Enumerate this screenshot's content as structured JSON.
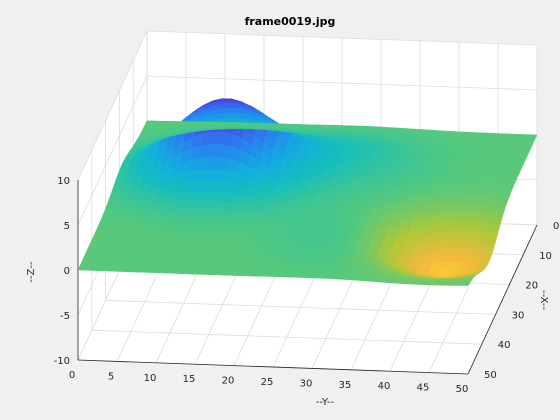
{
  "chart_data": {
    "type": "surface",
    "title": "frame0019.jpg",
    "xlabel": "--Y--",
    "ylabel": "--X--",
    "zlabel": "--Z--",
    "y_ticks": [
      "0",
      "5",
      "10",
      "15",
      "20",
      "25",
      "30",
      "35",
      "40",
      "45",
      "50"
    ],
    "x_ticks": [
      "0",
      "10",
      "20",
      "30",
      "40",
      "50"
    ],
    "z_ticks": [
      "-10",
      "-5",
      "0",
      "5",
      "10"
    ],
    "y_range": [
      0,
      50
    ],
    "x_range": [
      0,
      50
    ],
    "z_range": [
      -10,
      10
    ],
    "grid": true,
    "surface_peaks": [
      {
        "x": 18,
        "y": 13,
        "z": 8.5
      },
      {
        "x": 12,
        "y": 28,
        "z": 1.5
      },
      {
        "x": 36,
        "y": 33,
        "z": 1.0
      },
      {
        "x": 35,
        "y": 44,
        "z": -4.0
      }
    ],
    "baseline_z": 0
  }
}
